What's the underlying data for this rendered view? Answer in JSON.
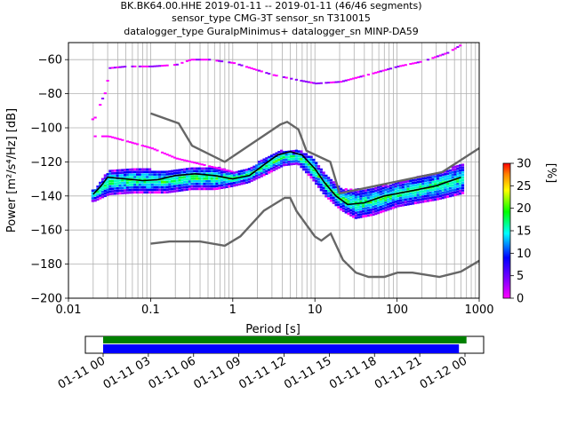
{
  "title_lines": [
    "BK.BK64.00.HHE   2019-01-11 -- 2019-01-11  (46/46 segments)",
    "sensor_type CMG-3T sensor_sn T310015",
    "datalogger_type GuralpMinimus+ datalogger_sn MINP-DA59"
  ],
  "colors": {
    "model": "#666666",
    "mode": "#000000",
    "grid": "#b0b0b0",
    "coverage_data": "#0000ff",
    "coverage_gaps": "#008000"
  },
  "chart_data": [
    {
      "type": "heatmap",
      "xlabel": "Period [s]",
      "ylabel": "Power [m²/s⁴/Hz] [dB]",
      "xscale": "log",
      "xlim": [
        0.01,
        1000
      ],
      "ylim": [
        -200,
        -50
      ],
      "x_ticks": [
        {
          "value": 0.01,
          "label": "0.01"
        },
        {
          "value": 0.1,
          "label": "0.1"
        },
        {
          "value": 1,
          "label": "1"
        },
        {
          "value": 10,
          "label": "10"
        },
        {
          "value": 100,
          "label": "100"
        },
        {
          "value": 1000,
          "label": "1000"
        }
      ],
      "y_ticks": [
        -60,
        -80,
        -100,
        -120,
        -140,
        -160,
        -180,
        -200
      ],
      "grid": true,
      "colorbar": {
        "label": "[%]",
        "range": [
          0,
          30
        ],
        "ticks": [
          0,
          5,
          10,
          15,
          20,
          25,
          30
        ],
        "colormap": "pqlx"
      },
      "noise_models": {
        "high": [
          [
            0.1,
            -91.5
          ],
          [
            0.22,
            -97.4
          ],
          [
            0.32,
            -110.5
          ],
          [
            0.8,
            -120
          ],
          [
            3.8,
            -98
          ],
          [
            4.6,
            -96.5
          ],
          [
            6.3,
            -101
          ],
          [
            7.9,
            -113.5
          ],
          [
            15.4,
            -120
          ],
          [
            20,
            -138.5
          ],
          [
            354.8,
            -126
          ],
          [
            1000,
            -112
          ]
        ],
        "low": [
          [
            0.1,
            -168
          ],
          [
            0.17,
            -166.7
          ],
          [
            0.4,
            -166.7
          ],
          [
            0.8,
            -169.2
          ],
          [
            1.24,
            -163.7
          ],
          [
            2.4,
            -148.6
          ],
          [
            4.3,
            -141.1
          ],
          [
            5,
            -141.1
          ],
          [
            6,
            -149
          ],
          [
            10,
            -163.8
          ],
          [
            12,
            -166.2
          ],
          [
            15.6,
            -162.1
          ],
          [
            21.9,
            -177.5
          ],
          [
            31.6,
            -185
          ],
          [
            45,
            -187.5
          ],
          [
            70,
            -187.5
          ],
          [
            101,
            -185
          ],
          [
            154,
            -185
          ],
          [
            328,
            -187.5
          ],
          [
            600,
            -184.4
          ],
          [
            1000,
            -178
          ]
        ]
      },
      "mode_curve": [
        [
          0.02,
          -139
        ],
        [
          0.025,
          -134
        ],
        [
          0.03,
          -129
        ],
        [
          0.05,
          -130
        ],
        [
          0.08,
          -131
        ],
        [
          0.12,
          -130.5
        ],
        [
          0.2,
          -128
        ],
        [
          0.35,
          -127
        ],
        [
          0.6,
          -128
        ],
        [
          1,
          -130
        ],
        [
          1.6,
          -128
        ],
        [
          2.5,
          -121
        ],
        [
          3.5,
          -116
        ],
        [
          5,
          -114
        ],
        [
          7,
          -116
        ],
        [
          10,
          -124
        ],
        [
          13,
          -132
        ],
        [
          18,
          -140
        ],
        [
          25,
          -145
        ],
        [
          40,
          -144
        ],
        [
          70,
          -140
        ],
        [
          150,
          -137
        ],
        [
          300,
          -134
        ],
        [
          600,
          -129
        ]
      ],
      "density_envelope": {
        "upper": [
          [
            0.02,
            -136
          ],
          [
            0.03,
            -125
          ],
          [
            0.06,
            -124
          ],
          [
            0.15,
            -125
          ],
          [
            0.3,
            -123
          ],
          [
            0.6,
            -123
          ],
          [
            1,
            -126
          ],
          [
            1.5,
            -124
          ],
          [
            2.5,
            -117
          ],
          [
            4,
            -113
          ],
          [
            6,
            -113
          ],
          [
            9,
            -117
          ],
          [
            13,
            -127
          ],
          [
            20,
            -136
          ],
          [
            40,
            -136
          ],
          [
            100,
            -132
          ],
          [
            300,
            -126
          ],
          [
            650,
            -121
          ]
        ],
        "lower": [
          [
            0.02,
            -143
          ],
          [
            0.03,
            -139
          ],
          [
            0.06,
            -138
          ],
          [
            0.15,
            -138
          ],
          [
            0.3,
            -136
          ],
          [
            0.6,
            -136
          ],
          [
            1,
            -134
          ],
          [
            1.5,
            -132
          ],
          [
            2.5,
            -127
          ],
          [
            4,
            -122
          ],
          [
            6,
            -121
          ],
          [
            9,
            -130
          ],
          [
            13,
            -140
          ],
          [
            20,
            -148
          ],
          [
            30,
            -153
          ],
          [
            50,
            -151
          ],
          [
            100,
            -146
          ],
          [
            300,
            -142
          ],
          [
            650,
            -138
          ]
        ]
      },
      "outer_envelope": {
        "upper": [
          [
            0.02,
            -95
          ],
          [
            0.025,
            -83
          ],
          [
            0.028,
            -78
          ],
          [
            0.03,
            -65
          ],
          [
            0.05,
            -64
          ],
          [
            0.1,
            -64
          ],
          [
            0.2,
            -63
          ],
          [
            0.3,
            -60
          ],
          [
            0.5,
            -60
          ],
          [
            1,
            -62
          ],
          [
            3,
            -69
          ],
          [
            6,
            -72
          ],
          [
            10,
            -74
          ],
          [
            20,
            -73
          ],
          [
            50,
            -68
          ],
          [
            100,
            -64
          ],
          [
            200,
            -61
          ],
          [
            400,
            -56
          ],
          [
            650,
            -50
          ]
        ],
        "lower": [
          [
            0.03,
            -105
          ],
          [
            0.06,
            -109
          ],
          [
            0.1,
            -112
          ],
          [
            0.2,
            -118
          ],
          [
            0.3,
            -120
          ],
          [
            1,
            -126
          ]
        ]
      },
      "data_coverage": {
        "x_ticks": [
          "01-11 00",
          "01-11 03",
          "01-11 06",
          "01-11 09",
          "01-11 12",
          "01-11 15",
          "01-11 18",
          "01-11 21",
          "01-12 00"
        ],
        "bars": [
          {
            "name": "gaps",
            "start_hour": 0,
            "end_hour": 24.1,
            "color_key": "coverage_gaps"
          },
          {
            "name": "data",
            "start_hour": 0,
            "end_hour": 23.6,
            "color_key": "coverage_data"
          }
        ]
      }
    }
  ]
}
